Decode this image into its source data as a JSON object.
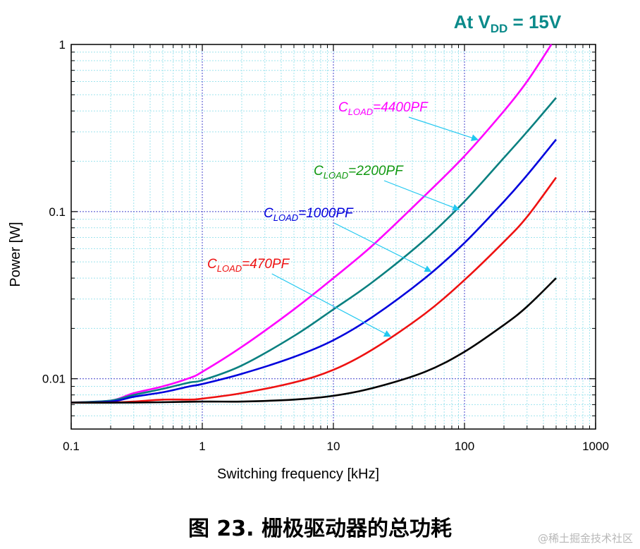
{
  "chart_data": {
    "type": "line",
    "title": "",
    "condition": {
      "prefix": "At V",
      "sub": "DD",
      "suffix": " = 15V"
    },
    "xlabel": "Switching frequency [kHz]",
    "ylabel": "Power [W]",
    "x_scale": "log",
    "y_scale": "log",
    "xlim": [
      0.1,
      1000
    ],
    "ylim": [
      0.005,
      1
    ],
    "x_ticks": [
      "0.1",
      "1",
      "10",
      "100",
      "1000"
    ],
    "y_ticks": [
      "0.01",
      "0.1",
      "1"
    ],
    "grid": true,
    "series": [
      {
        "color": "#ff00ff",
        "points": [
          [
            0.1,
            0.0072
          ],
          [
            0.2,
            0.0074
          ],
          [
            0.3,
            0.0082
          ],
          [
            0.5,
            0.009
          ],
          [
            0.8,
            0.0101
          ],
          [
            1,
            0.011
          ],
          [
            2,
            0.0155
          ],
          [
            5,
            0.026
          ],
          [
            10,
            0.04
          ],
          [
            20,
            0.063
          ],
          [
            50,
            0.125
          ],
          [
            100,
            0.215
          ],
          [
            200,
            0.4
          ],
          [
            300,
            0.6
          ],
          [
            460,
            1.0
          ]
        ]
      },
      {
        "color": "#0a8080",
        "points": [
          [
            0.1,
            0.0072
          ],
          [
            0.2,
            0.0074
          ],
          [
            0.3,
            0.008
          ],
          [
            0.5,
            0.0087
          ],
          [
            0.8,
            0.0095
          ],
          [
            1,
            0.0098
          ],
          [
            2,
            0.012
          ],
          [
            5,
            0.018
          ],
          [
            10,
            0.026
          ],
          [
            20,
            0.038
          ],
          [
            50,
            0.068
          ],
          [
            100,
            0.115
          ],
          [
            200,
            0.21
          ],
          [
            300,
            0.3
          ],
          [
            500,
            0.48
          ]
        ]
      },
      {
        "color": "#0000dd",
        "points": [
          [
            0.1,
            0.0072
          ],
          [
            0.2,
            0.0073
          ],
          [
            0.3,
            0.0078
          ],
          [
            0.5,
            0.0083
          ],
          [
            0.8,
            0.009
          ],
          [
            1,
            0.0093
          ],
          [
            2,
            0.0107
          ],
          [
            5,
            0.0135
          ],
          [
            10,
            0.017
          ],
          [
            20,
            0.0235
          ],
          [
            50,
            0.04
          ],
          [
            100,
            0.065
          ],
          [
            200,
            0.115
          ],
          [
            300,
            0.165
          ],
          [
            500,
            0.27
          ]
        ]
      },
      {
        "color": "#ee1111",
        "points": [
          [
            0.1,
            0.0072
          ],
          [
            0.2,
            0.0072
          ],
          [
            0.3,
            0.0073
          ],
          [
            0.5,
            0.0075
          ],
          [
            0.8,
            0.0075
          ],
          [
            1,
            0.0076
          ],
          [
            2,
            0.0082
          ],
          [
            5,
            0.0095
          ],
          [
            10,
            0.0113
          ],
          [
            20,
            0.015
          ],
          [
            50,
            0.0245
          ],
          [
            100,
            0.039
          ],
          [
            200,
            0.066
          ],
          [
            300,
            0.093
          ],
          [
            500,
            0.16
          ]
        ]
      },
      {
        "color": "#000000",
        "points": [
          [
            0.1,
            0.0072
          ],
          [
            0.3,
            0.0072
          ],
          [
            1,
            0.0073
          ],
          [
            2,
            0.0073
          ],
          [
            5,
            0.0075
          ],
          [
            10,
            0.0079
          ],
          [
            20,
            0.0088
          ],
          [
            50,
            0.011
          ],
          [
            100,
            0.0145
          ],
          [
            200,
            0.021
          ],
          [
            300,
            0.027
          ],
          [
            500,
            0.04
          ]
        ]
      }
    ],
    "annotations": [
      {
        "prefix": "C",
        "sub": "LOAD",
        "suffix": "=4400PF",
        "color": "#ff00ff",
        "arrow_to": [
          125,
          0.27
        ]
      },
      {
        "prefix": "C",
        "sub": "LOAD",
        "suffix": "=2200PF",
        "color": "#119911",
        "arrow_to": [
          90,
          0.103
        ]
      },
      {
        "prefix": "C",
        "sub": "LOAD",
        "suffix": "=1000PF",
        "color": "#0000dd",
        "arrow_to": [
          55,
          0.044
        ]
      },
      {
        "prefix": "C",
        "sub": "LOAD",
        "suffix": "=470PF",
        "color": "#ee1111",
        "arrow_to": [
          27,
          0.018
        ]
      }
    ],
    "arrow_color": "#22c8f0"
  },
  "caption": "图 23. 栅极驱动器的总功耗",
  "watermark": "@稀土掘金技术社区"
}
